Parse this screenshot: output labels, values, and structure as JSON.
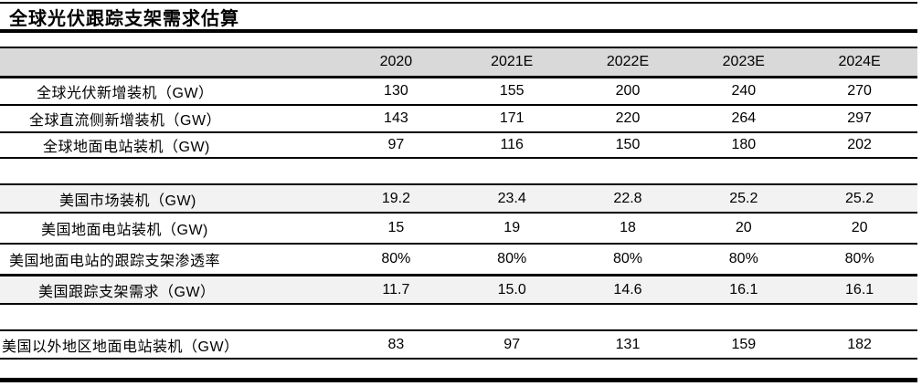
{
  "title": "全球光伏跟踪支架需求估算",
  "colors": {
    "header_bg": "#d9d9d9",
    "shaded_row_bg": "#f2f2f2",
    "rule": "#000000",
    "text": "#000000",
    "background": "#ffffff"
  },
  "chart_data": {
    "type": "table",
    "title": "全球光伏跟踪支架需求估算",
    "categories": [
      "2020",
      "2021E",
      "2022E",
      "2023E",
      "2024E"
    ],
    "series": [
      {
        "name": "全球光伏新增装机（GW）",
        "values": [
          "130",
          "155",
          "200",
          "240",
          "270"
        ]
      },
      {
        "name": "全球直流侧新增装机（GW）",
        "values": [
          "143",
          "171",
          "220",
          "264",
          "297"
        ]
      },
      {
        "name": "全球地面电站装机（GW)",
        "values": [
          "97",
          "116",
          "150",
          "180",
          "202"
        ]
      },
      {
        "name": "美国市场装机（GW)",
        "values": [
          "19.2",
          "23.4",
          "22.8",
          "25.2",
          "25.2"
        ]
      },
      {
        "name": "美国地面电站装机（GW)",
        "values": [
          "15",
          "19",
          "18",
          "20",
          "20"
        ]
      },
      {
        "name": "美国地面电站的跟踪支架渗透率",
        "values": [
          "80%",
          "80%",
          "80%",
          "80%",
          "80%"
        ]
      },
      {
        "name": "美国跟踪支架需求（GW）",
        "values": [
          "11.7",
          "15.0",
          "14.6",
          "16.1",
          "16.1"
        ]
      },
      {
        "name": "美国以外地区地面电站装机（GW）",
        "values": [
          "83",
          "97",
          "131",
          "159",
          "182"
        ]
      }
    ],
    "layout": {
      "header_fill": "#d9d9d9",
      "shaded_rows": [
        3,
        6
      ],
      "section_breaks_after_rows": [
        2,
        6
      ],
      "grid": "horizontal-rules-only"
    }
  }
}
